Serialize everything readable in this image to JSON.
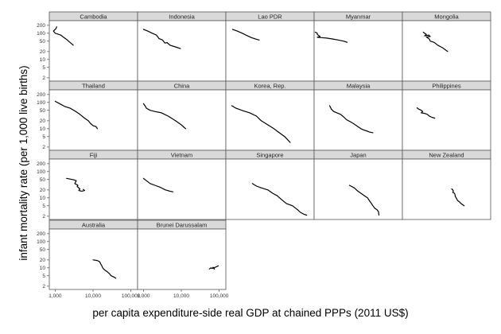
{
  "chart_data": {
    "type": "line",
    "layout": "facet-grid",
    "xlabel": "per capita expenditure-side real GDP at chained PPPs (2011 US$)",
    "ylabel": "infant mortality rate (per 1,000 live births)",
    "x_scale": "log",
    "y_scale": "log",
    "xlim": [
      700,
      150000
    ],
    "ylim": [
      1.5,
      300
    ],
    "x_ticks": [
      1000,
      10000,
      100000
    ],
    "x_tick_labels": [
      "1,000",
      "10,000",
      "100,000"
    ],
    "y_ticks": [
      2,
      5,
      10,
      20,
      50,
      100,
      200
    ],
    "y_tick_labels": [
      "2",
      "5",
      "10",
      "20",
      "50",
      "100",
      "200"
    ],
    "grid": false,
    "panels": [
      {
        "name": "Cambodia",
        "points": [
          [
            1100,
            175
          ],
          [
            1050,
            150
          ],
          [
            900,
            120
          ],
          [
            1000,
            100
          ],
          [
            1400,
            85
          ],
          [
            2000,
            58
          ],
          [
            3000,
            35
          ]
        ]
      },
      {
        "name": "Indonesia",
        "points": [
          [
            1000,
            140
          ],
          [
            1300,
            120
          ],
          [
            1700,
            100
          ],
          [
            2200,
            85
          ],
          [
            2600,
            62
          ],
          [
            3200,
            55
          ],
          [
            3700,
            42
          ],
          [
            4200,
            44
          ],
          [
            5000,
            35
          ],
          [
            7000,
            30
          ],
          [
            9500,
            26
          ]
        ]
      },
      {
        "name": "Lao PDR",
        "points": [
          [
            1050,
            140
          ],
          [
            1400,
            120
          ],
          [
            1900,
            100
          ],
          [
            2500,
            82
          ],
          [
            3300,
            68
          ],
          [
            4300,
            60
          ],
          [
            5300,
            55
          ]
        ]
      },
      {
        "name": "Myanmar",
        "points": [
          [
            750,
            110
          ],
          [
            850,
            100
          ],
          [
            850,
            90
          ],
          [
            1000,
            75
          ],
          [
            850,
            70
          ],
          [
            1100,
            68
          ],
          [
            1500,
            65
          ],
          [
            2200,
            60
          ],
          [
            3000,
            55
          ],
          [
            4200,
            50
          ],
          [
            5200,
            45
          ]
        ]
      },
      {
        "name": "Mongolia",
        "points": [
          [
            2500,
            110
          ],
          [
            2700,
            100
          ],
          [
            3000,
            90
          ],
          [
            2700,
            80
          ],
          [
            3500,
            85
          ],
          [
            3800,
            75
          ],
          [
            3000,
            72
          ],
          [
            3600,
            60
          ],
          [
            3800,
            50
          ],
          [
            4800,
            45
          ],
          [
            6000,
            35
          ],
          [
            8000,
            28
          ],
          [
            11000,
            20
          ]
        ]
      },
      {
        "name": "Thailand",
        "points": [
          [
            1000,
            110
          ],
          [
            1300,
            90
          ],
          [
            1800,
            70
          ],
          [
            2500,
            60
          ],
          [
            3500,
            45
          ],
          [
            4500,
            35
          ],
          [
            6000,
            25
          ],
          [
            7500,
            20
          ],
          [
            8500,
            16
          ],
          [
            10000,
            13
          ],
          [
            12000,
            12
          ],
          [
            13000,
            10
          ]
        ]
      },
      {
        "name": "China",
        "points": [
          [
            1000,
            90
          ],
          [
            1100,
            75
          ],
          [
            1200,
            60
          ],
          [
            1500,
            50
          ],
          [
            2000,
            45
          ],
          [
            3000,
            40
          ],
          [
            4500,
            30
          ],
          [
            7000,
            20
          ],
          [
            10000,
            14
          ],
          [
            13000,
            10
          ]
        ]
      },
      {
        "name": "Korea, Rep.",
        "points": [
          [
            1000,
            75
          ],
          [
            1300,
            60
          ],
          [
            2000,
            48
          ],
          [
            3000,
            40
          ],
          [
            4500,
            30
          ],
          [
            6000,
            20
          ],
          [
            9000,
            14
          ],
          [
            13000,
            10
          ],
          [
            18000,
            7
          ],
          [
            25000,
            5
          ],
          [
            30000,
            3.8
          ],
          [
            35000,
            3
          ]
        ]
      },
      {
        "name": "Malaysia",
        "points": [
          [
            1800,
            75
          ],
          [
            2000,
            55
          ],
          [
            2300,
            45
          ],
          [
            2800,
            40
          ],
          [
            3500,
            35
          ],
          [
            4200,
            28
          ],
          [
            5000,
            22
          ],
          [
            6500,
            18
          ],
          [
            8000,
            15
          ],
          [
            10000,
            12
          ],
          [
            12000,
            10
          ],
          [
            14000,
            9
          ],
          [
            18000,
            8
          ],
          [
            20000,
            7.5
          ],
          [
            25000,
            7
          ]
        ]
      },
      {
        "name": "Philippines",
        "points": [
          [
            1700,
            62
          ],
          [
            1900,
            55
          ],
          [
            2200,
            50
          ],
          [
            2400,
            45
          ],
          [
            2200,
            40
          ],
          [
            2700,
            38
          ],
          [
            3200,
            35
          ],
          [
            3600,
            30
          ],
          [
            4200,
            27
          ],
          [
            5000,
            25
          ]
        ]
      },
      {
        "name": "Fiji",
        "points": [
          [
            2000,
            55
          ],
          [
            2800,
            50
          ],
          [
            3200,
            48
          ],
          [
            3600,
            45
          ],
          [
            3300,
            35
          ],
          [
            4000,
            30
          ],
          [
            3800,
            27
          ],
          [
            4500,
            22
          ],
          [
            4200,
            19
          ],
          [
            5000,
            18
          ],
          [
            6000,
            19
          ],
          [
            5500,
            21
          ]
        ]
      },
      {
        "name": "Vietnam",
        "points": [
          [
            1000,
            55
          ],
          [
            1200,
            45
          ],
          [
            1500,
            35
          ],
          [
            2000,
            30
          ],
          [
            2800,
            25
          ],
          [
            3800,
            20
          ],
          [
            5000,
            18
          ],
          [
            6000,
            17
          ]
        ]
      },
      {
        "name": "Singapore",
        "points": [
          [
            3500,
            35
          ],
          [
            4500,
            28
          ],
          [
            6000,
            24
          ],
          [
            9000,
            20
          ],
          [
            12000,
            15
          ],
          [
            16000,
            12
          ],
          [
            20000,
            9
          ],
          [
            28000,
            6
          ],
          [
            40000,
            5
          ],
          [
            55000,
            3.5
          ],
          [
            65000,
            2.8
          ],
          [
            80000,
            2.4
          ],
          [
            95000,
            2.2
          ]
        ]
      },
      {
        "name": "Japan",
        "points": [
          [
            6000,
            30
          ],
          [
            8000,
            24
          ],
          [
            10000,
            18
          ],
          [
            12000,
            15
          ],
          [
            15000,
            12
          ],
          [
            18000,
            10
          ],
          [
            20000,
            8
          ],
          [
            23000,
            6
          ],
          [
            25000,
            5
          ],
          [
            28000,
            4
          ],
          [
            32000,
            3.5
          ],
          [
            35000,
            3
          ],
          [
            36000,
            2.2
          ]
        ]
      },
      {
        "name": "New Zealand",
        "points": [
          [
            14000,
            22
          ],
          [
            15000,
            20
          ],
          [
            15500,
            18
          ],
          [
            15000,
            16
          ],
          [
            16500,
            15
          ],
          [
            17000,
            14
          ],
          [
            17500,
            11
          ],
          [
            18500,
            10
          ],
          [
            20000,
            8
          ],
          [
            22500,
            7
          ],
          [
            25000,
            6
          ],
          [
            30000,
            5
          ]
        ]
      },
      {
        "name": "Australia",
        "points": [
          [
            10000,
            20
          ],
          [
            13000,
            19
          ],
          [
            15000,
            17
          ],
          [
            16000,
            14
          ],
          [
            17000,
            12
          ],
          [
            18000,
            10
          ],
          [
            19000,
            9
          ],
          [
            21000,
            8
          ],
          [
            24000,
            7
          ],
          [
            27000,
            6
          ],
          [
            30000,
            5
          ],
          [
            35000,
            4.5
          ],
          [
            40000,
            4
          ]
        ]
      },
      {
        "name": "Brunei Darussalam",
        "points": [
          [
            55000,
            9
          ],
          [
            60000,
            10
          ],
          [
            65000,
            9.5
          ],
          [
            70000,
            10.5
          ],
          [
            68000,
            10
          ],
          [
            75000,
            9
          ],
          [
            72000,
            10
          ],
          [
            85000,
            11
          ],
          [
            95000,
            12
          ]
        ]
      }
    ]
  }
}
